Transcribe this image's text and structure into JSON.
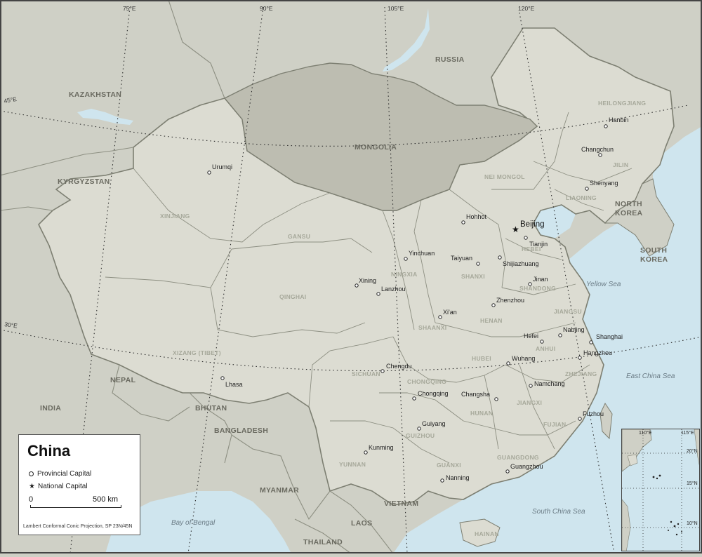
{
  "legend": {
    "title": "China",
    "provincial_capital_label": "Provincial Capital",
    "national_capital_label": "National Capital",
    "scale_start": "0",
    "scale_end": "500 km",
    "projection_note": "Lambert Conformal Conic Projection, SP 23N/45N"
  },
  "graticule": {
    "lon_75": "75°E",
    "lon_90": "90°E",
    "lon_105": "105°E",
    "lon_120": "120°E",
    "lat_45": "45°E",
    "lat_30": "30°E"
  },
  "countries": {
    "kazakhstan": "KAZAKHSTAN",
    "russia": "RUSSIA",
    "mongolia": "MONGOLIA",
    "kyrgyzstan": "KYRGYZSTAN",
    "north_korea_1": "NORTH",
    "north_korea_2": "KOREA",
    "south_korea_1": "SOUTH",
    "south_korea_2": "KOREA",
    "nepal": "NEPAL",
    "india": "INDIA",
    "bhutan": "BHUTAN",
    "bangladesh": "BANGLADESH",
    "myanmar": "MYANMAR",
    "vietnam": "VIETNAM",
    "laos": "LAOS",
    "thailand": "THAILAND"
  },
  "provinces": {
    "heilongjiang": "HEILONGJIANG",
    "jilin": "JILIN",
    "liaoning": "LIAONING",
    "nei_mongol": "NEI MONGOL",
    "xinjiang": "XINJIANG",
    "gansu": "GANSU",
    "qinghai": "QINGHAI",
    "ningxia": "NINGXIA",
    "shanxi": "SHANXI",
    "hebei": "HEBEI",
    "shandong": "SHANDONG",
    "henan": "HENAN",
    "jiangsu": "JIANGSU",
    "shaanxi": "SHAANXI",
    "anhui": "ANHUI",
    "xizang": "XIZANG (TIBET)",
    "sichuan": "SICHUAN",
    "hubei": "HUBEI",
    "zhejiang": "ZHEJIANG",
    "chongqing": "CHONGQING",
    "hunan": "HUNAN",
    "jiangxi": "JIANGXI",
    "fujian": "FUJIAN",
    "guizhou": "GUIZHOU",
    "yunnan": "YUNNAN",
    "guangxi": "GUANXI",
    "guangdong": "GUANGDONG",
    "hainan": "HAINAN"
  },
  "cities": {
    "hanbin": "Hanbin",
    "changchun": "Changchun",
    "shenyang": "Shenyang",
    "urumqi": "Urumqi",
    "hohhot": "Hohhot",
    "beijing": "Beijing",
    "tianjin": "Tianjin",
    "yinchuan": "Yinchuan",
    "taiyuan": "Taiyuan",
    "shijiazhuang": "Shijiazhuang",
    "jinan": "Jinan",
    "xining": "Xining",
    "lanzhou": "Lanzhou",
    "zhenzhou": "Zhenzhou",
    "xian": "Xi'an",
    "nanjing": "Nabjing",
    "hefei": "Hefei",
    "shanghai": "Shanghai",
    "hangzhou": "Hangzhou",
    "wuhang": "Wuhang",
    "chengdu": "Chengdu",
    "lhasa": "Lhasa",
    "chongqing": "Chongqing",
    "changsha": "Changsha",
    "namchang": "Namchang",
    "fuzhou": "Fuzhou",
    "guiyang": "Guiyang",
    "kunming": "Kunming",
    "guangzhou": "Guangzhou",
    "nanning": "Nanning"
  },
  "water": {
    "yellow_sea": "Yellow Sea",
    "east_china_sea": "East China Sea",
    "south_china_sea": "South China Sea",
    "bay_of_bengal": "Bay of Bengal"
  },
  "inset": {
    "lon_110": "110°E",
    "lon_115": "115°E",
    "lat_20": "20°N",
    "lat_15": "15°N",
    "lat_10": "10°N"
  },
  "colors": {
    "land_china": "#dcdcd2",
    "land_other": "#cfd0c6",
    "mongolia": "#bdbdb1",
    "sea": "#cfe5ee",
    "border": "#7d7f72"
  }
}
